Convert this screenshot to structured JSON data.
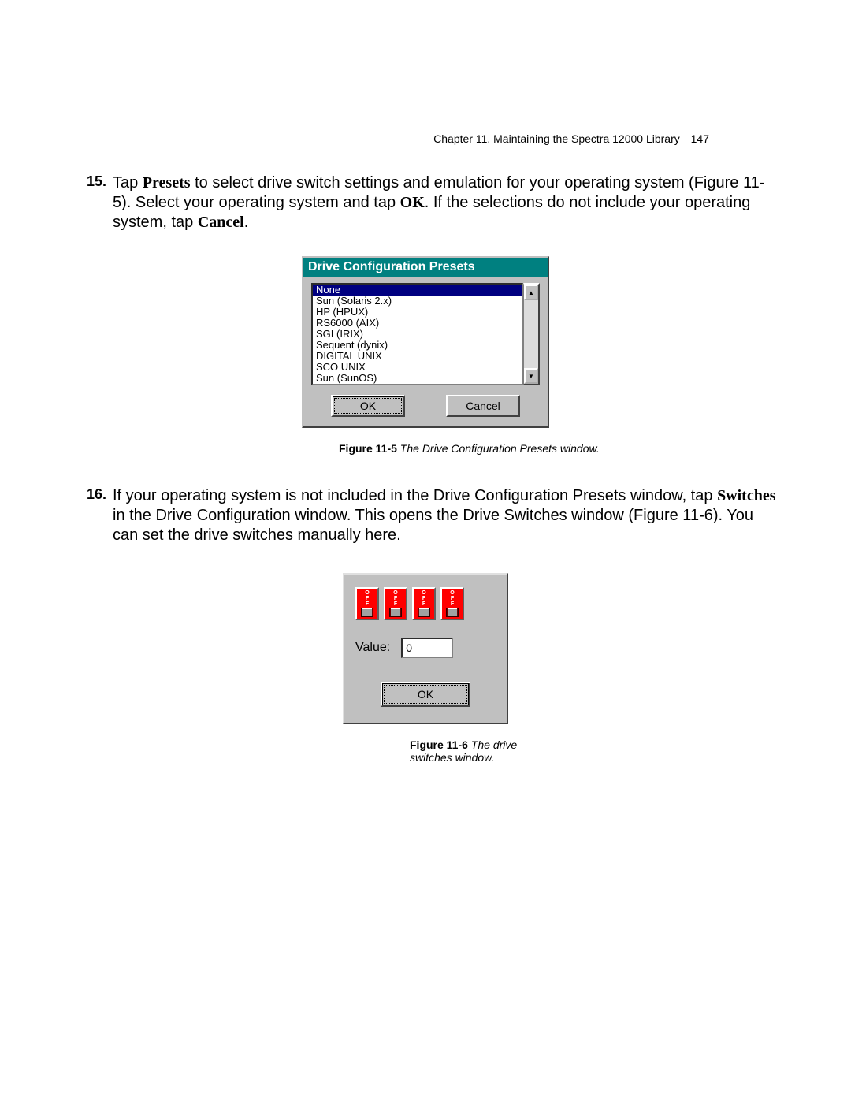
{
  "header": {
    "text": "Chapter 11. Maintaining the Spectra 12000 Library",
    "page": "147"
  },
  "step15": {
    "num": "15.",
    "t1": "Tap ",
    "presets": "Presets",
    "t2": " to select drive switch settings and emulation for your operating system (Figure 11-5). Select your operating system and tap ",
    "ok": "OK",
    "t3": ". If the selections do not include your operating system, tap ",
    "cancel": "Cancel",
    "t4": "."
  },
  "dlg1": {
    "title": "Drive Configuration Presets",
    "items": [
      "None",
      "Sun (Solaris 2.x)",
      "HP (HPUX)",
      "RS6000 (AIX)",
      "SGI (IRIX)",
      "Sequent (dynix)",
      "DIGITAL UNIX",
      "SCO UNIX",
      "Sun (SunOS)"
    ],
    "selectedIndex": 0,
    "ok": "OK",
    "cancel": "Cancel"
  },
  "caption1": {
    "label": "Figure 11-5",
    "text": "   The Drive Configuration Presets window."
  },
  "step16": {
    "num": "16.",
    "t1": "If your operating system is not included in the Drive Configuration Presets window, tap ",
    "switches": "Switches",
    "t2": " in the Drive Configuration window. This opens the Drive Switches window (Figure 11-6). You can set the drive switches manually here."
  },
  "dlg2": {
    "dipLabels": [
      "O",
      "F",
      "F"
    ],
    "dipCount": 4,
    "valueLabel": "Value:",
    "value": "0",
    "ok": "OK"
  },
  "caption2": {
    "label": "Figure 11-6",
    "text": "   The drive switches window."
  }
}
